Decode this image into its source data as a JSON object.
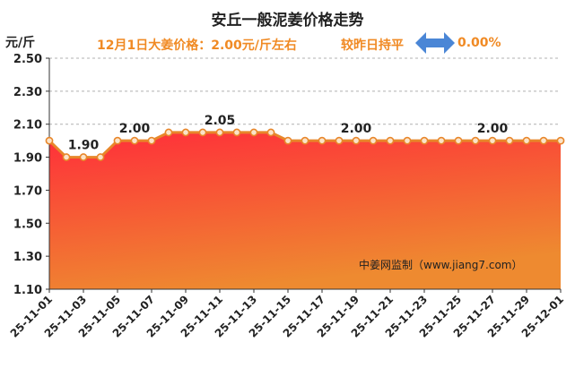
{
  "header": {
    "title": "安丘一般泥姜价格走势",
    "unit": "元/斤",
    "price_line": "12月1日大姜价格：2.00元/斤左右",
    "compare_label": "较昨日持平",
    "change_pct": "0.00%"
  },
  "colors": {
    "accent": "#f08a24",
    "line": "#e8862a",
    "arrow": "#4a86d6",
    "fill_top": "#ff2d3a",
    "fill_bottom": "#ee8a30"
  },
  "chart_data": {
    "type": "area",
    "title": "安丘一般泥姜价格走势",
    "ylabel": "元/斤",
    "xlabel": "",
    "ylim": [
      1.1,
      2.5
    ],
    "yticks": [
      "2.50",
      "2.30",
      "2.10",
      "1.90",
      "1.70",
      "1.50",
      "1.30",
      "1.10"
    ],
    "x_tick_labels": [
      "25-11-01",
      "25-11-03",
      "25-11-05",
      "25-11-07",
      "25-11-09",
      "25-11-11",
      "25-11-13",
      "25-11-15",
      "25-11-17",
      "25-11-19",
      "25-11-21",
      "25-11-23",
      "25-11-25",
      "25-11-27",
      "25-11-29",
      "25-12-01"
    ],
    "series": [
      {
        "name": "安丘一般泥姜",
        "values": [
          2.0,
          1.9,
          1.9,
          1.9,
          2.0,
          2.0,
          2.0,
          2.05,
          2.05,
          2.05,
          2.05,
          2.05,
          2.05,
          2.05,
          2.0,
          2.0,
          2.0,
          2.0,
          2.0,
          2.0,
          2.0,
          2.0,
          2.0,
          2.0,
          2.0,
          2.0,
          2.0,
          2.0,
          2.0,
          2.0,
          2.0
        ]
      }
    ],
    "data_labels": [
      {
        "index": 2,
        "text": "1.90"
      },
      {
        "index": 5,
        "text": "2.00"
      },
      {
        "index": 10,
        "text": "2.05"
      },
      {
        "index": 18,
        "text": "2.00"
      },
      {
        "index": 26,
        "text": "2.00"
      }
    ],
    "watermark": "中姜网监制（www.jiang7.com）",
    "grid": true
  }
}
